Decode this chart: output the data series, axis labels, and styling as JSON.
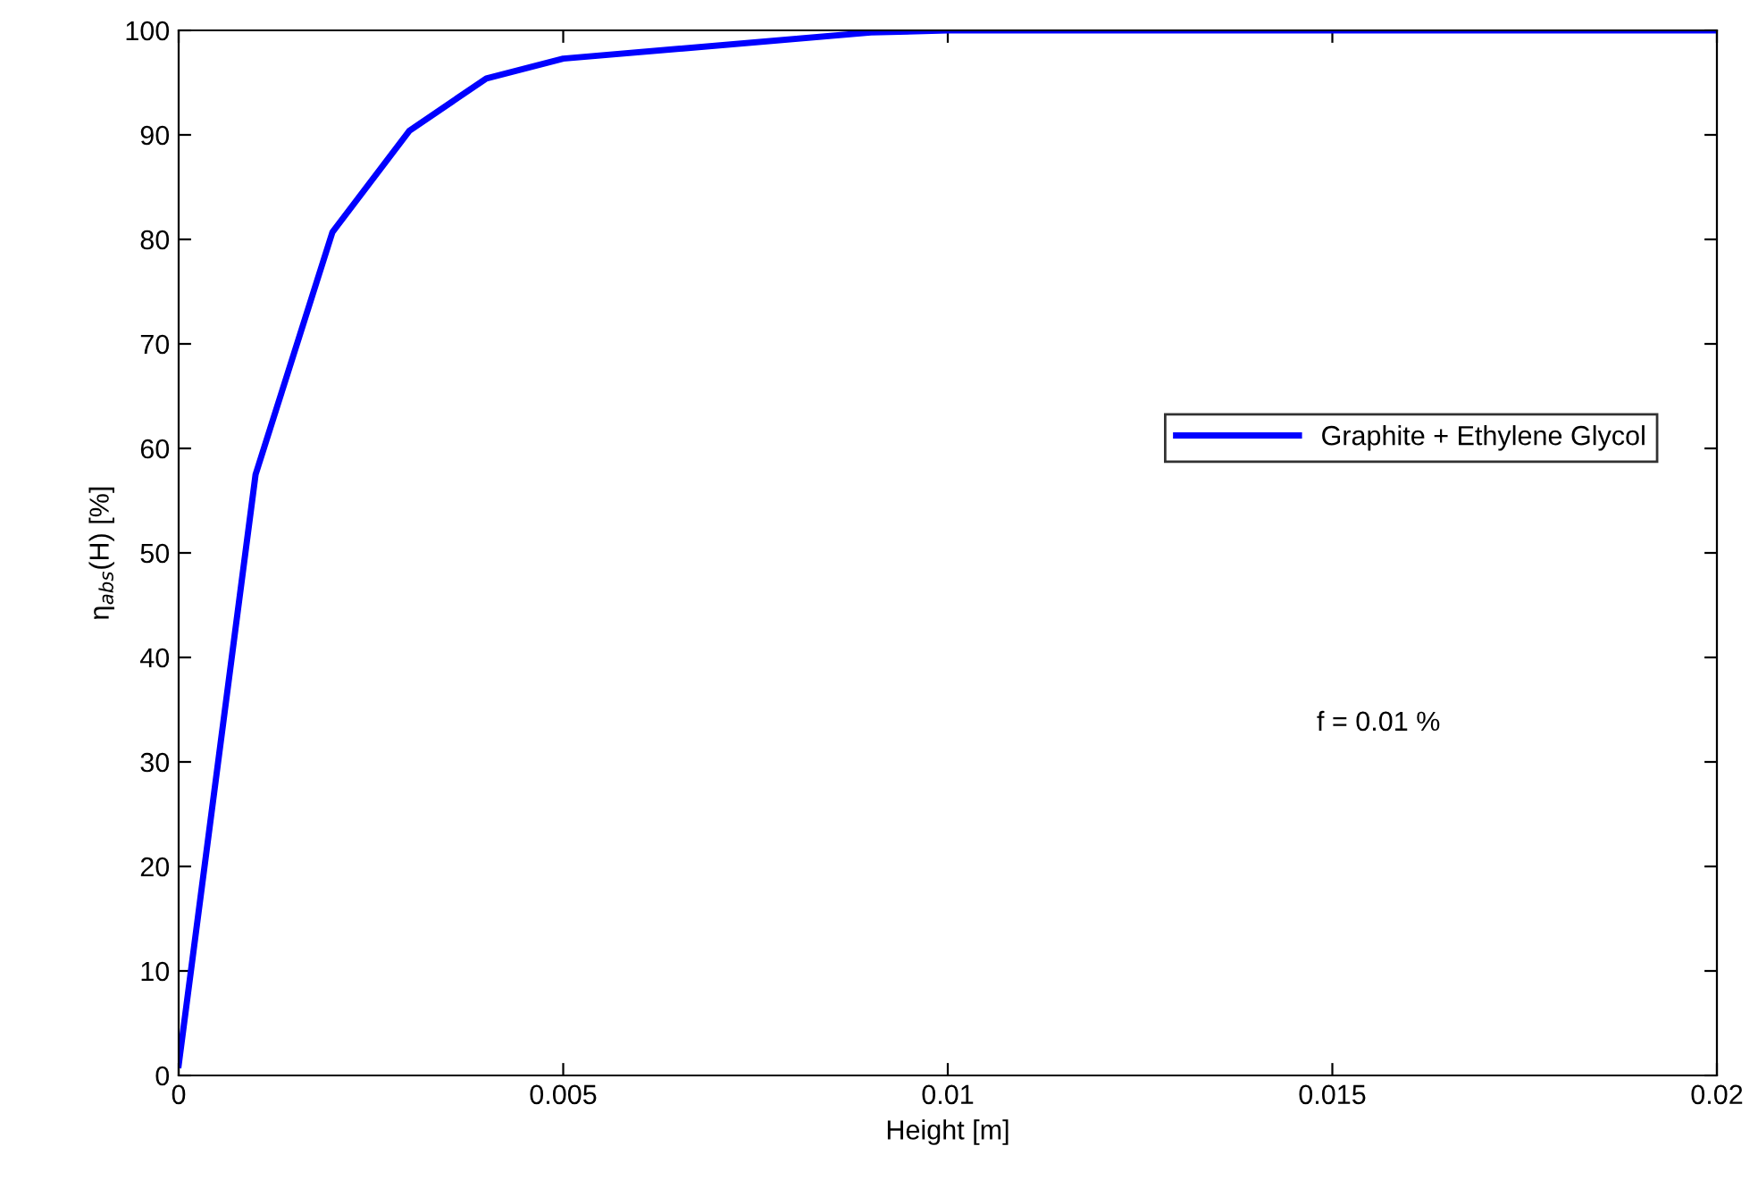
{
  "chart_data": {
    "type": "line",
    "xlabel": "Height [m]",
    "ylabel": "η$_{abs}$(H) [%]",
    "x": [
      0,
      0.001,
      0.002,
      0.003,
      0.004,
      0.005,
      0.009,
      0.01,
      0.02
    ],
    "series": [
      {
        "name": "Graphite + Ethylene Glycol",
        "color": "#0000ff",
        "values": [
          1,
          57.5,
          80.7,
          90.4,
          95.4,
          97.3,
          99.8,
          100,
          100
        ]
      }
    ],
    "xlim": [
      0,
      0.02
    ],
    "xticks": [
      0,
      0.005,
      0.01,
      0.015,
      0.02
    ],
    "ylim": [
      0,
      100
    ],
    "yticks": [
      0,
      10,
      20,
      30,
      40,
      50,
      60,
      70,
      80,
      90,
      100
    ],
    "annotations": [
      "f = 0.01 %"
    ],
    "legend": "right",
    "grid": false,
    "marker": "none",
    "line_style": "solid"
  }
}
